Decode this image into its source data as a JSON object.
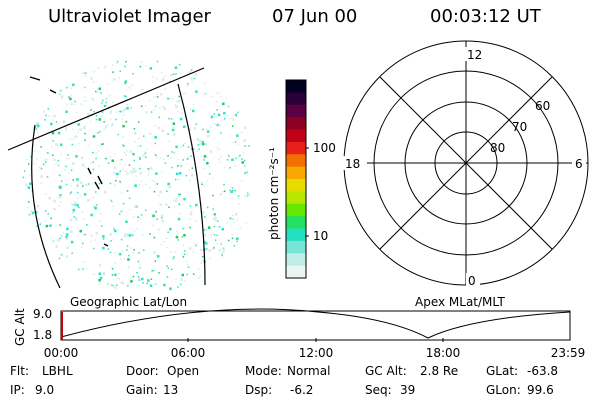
{
  "header": {
    "title": "Ultraviolet Imager",
    "date": "07 Jun 00",
    "time": "00:03:12 UT"
  },
  "image_panel": {
    "label": "Geographic Lat/Lon",
    "speckle_color": "#33dfc6"
  },
  "colorbar": {
    "label": "photon cm⁻²s⁻¹",
    "ticks": [
      "100",
      "10"
    ],
    "colors": [
      "#000020",
      "#2a0038",
      "#5a0044",
      "#8c0022",
      "#c00018",
      "#e8201a",
      "#f07000",
      "#f8a800",
      "#e6dc00",
      "#b8e800",
      "#66e800",
      "#22e060",
      "#22e0c0",
      "#77e6d6",
      "#bfeee8",
      "#eaf6f4"
    ]
  },
  "polar_plot": {
    "label": "Apex MLat/MLT",
    "mlt_labels": [
      "12",
      "18",
      "6",
      "0"
    ],
    "mlat_labels": [
      "60",
      "70",
      "80"
    ]
  },
  "altitude_plot": {
    "ylabel": "GC Alt",
    "yticks": [
      "9.0",
      "1.8"
    ],
    "xticks": [
      "00:00",
      "06:00",
      "12:00",
      "18:00",
      "23:59"
    ]
  },
  "info": {
    "rows": [
      [
        {
          "k": "Flt:",
          "v": "LBHL"
        },
        {
          "k": "Door:",
          "v": "Open"
        },
        {
          "k": "Mode:",
          "v": "Normal"
        },
        {
          "k": "GC Alt:",
          "v": "2.8 Re"
        },
        {
          "k": "GLat:",
          "v": "-63.8"
        }
      ],
      [
        {
          "k": "IP:",
          "v": "9.0"
        },
        {
          "k": "Gain:",
          "v": "13"
        },
        {
          "k": "Dsp:",
          "v": "-6.2"
        },
        {
          "k": "Seq:",
          "v": "39"
        },
        {
          "k": "GLon:",
          "v": "99.6"
        }
      ]
    ]
  }
}
